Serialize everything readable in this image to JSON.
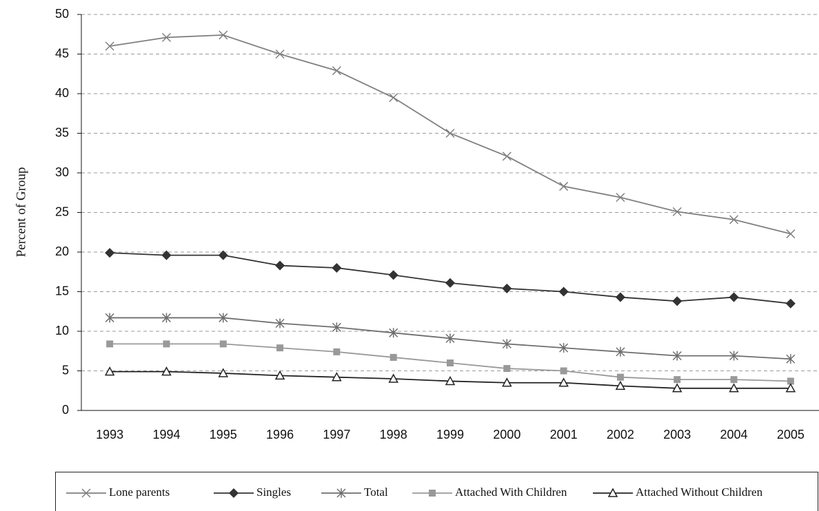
{
  "chart_data": {
    "type": "line",
    "y_label": "Percent of Group",
    "categories": [
      "1993",
      "1994",
      "1995",
      "1996",
      "1997",
      "1998",
      "1999",
      "2000",
      "2001",
      "2002",
      "2003",
      "2004",
      "2005"
    ],
    "ylim": [
      0,
      50
    ],
    "yticks": [
      0,
      5,
      10,
      15,
      20,
      25,
      30,
      35,
      40,
      45,
      50
    ],
    "grid": true,
    "series": [
      {
        "name": "Lone parents",
        "color": "#7f7f7f",
        "marker": "x",
        "values": [
          46,
          47.1,
          47.4,
          45,
          42.9,
          39.5,
          35,
          32.1,
          28.3,
          26.9,
          25.1,
          24.1,
          22.3
        ]
      },
      {
        "name": "Singles",
        "color": "#333333",
        "marker": "diamond",
        "values": [
          19.9,
          19.6,
          19.6,
          18.3,
          18,
          17.1,
          16.1,
          15.4,
          15,
          14.3,
          13.8,
          14.3,
          13.5
        ]
      },
      {
        "name": "Total",
        "color": "#6e6e6e",
        "marker": "asterisk",
        "values": [
          11.7,
          11.7,
          11.7,
          11,
          10.5,
          9.8,
          9.1,
          8.4,
          7.9,
          7.4,
          6.9,
          6.9,
          6.5
        ]
      },
      {
        "name": "Attached With Children",
        "color": "#999999",
        "marker": "square",
        "values": [
          8.4,
          8.4,
          8.4,
          7.9,
          7.4,
          6.7,
          6,
          5.3,
          5,
          4.2,
          3.9,
          3.9,
          3.7
        ]
      },
      {
        "name": "Attached Without Children",
        "color": "#222222",
        "marker": "triangle",
        "values": [
          4.9,
          4.9,
          4.7,
          4.4,
          4.2,
          4,
          3.7,
          3.5,
          3.5,
          3.1,
          2.8,
          2.8,
          2.8
        ]
      }
    ]
  }
}
